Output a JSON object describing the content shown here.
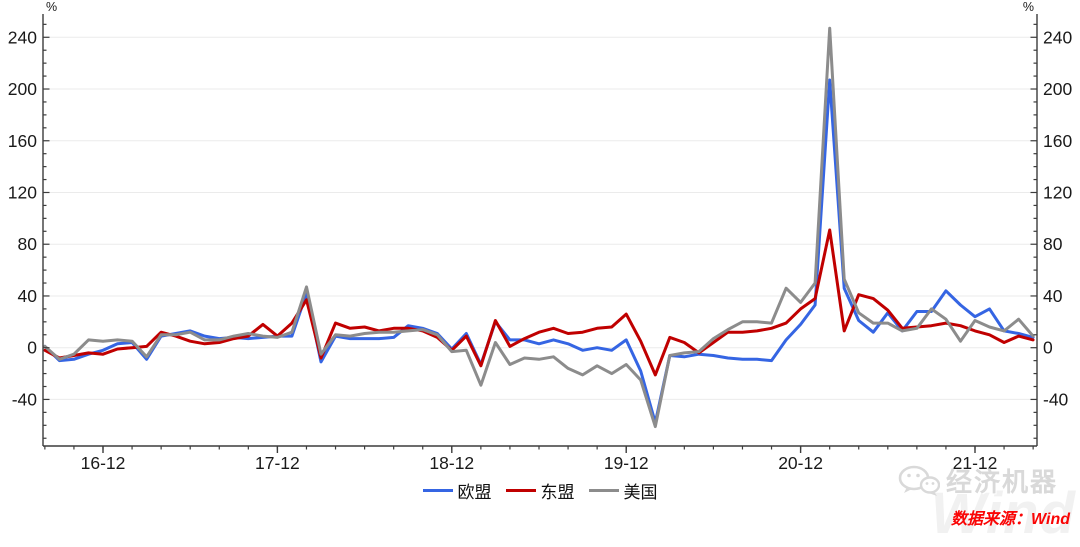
{
  "chart_data": {
    "type": "line",
    "title": "",
    "unit_left": "%",
    "unit_right": "%",
    "grid": "horizontal-major",
    "legend_position": "bottom-center",
    "ylim": [
      -76,
      258
    ],
    "yticks": [
      -40,
      0,
      40,
      80,
      120,
      160,
      200,
      240
    ],
    "y_minor_step": 10,
    "x_tick_labels": [
      "16-12",
      "17-12",
      "18-12",
      "19-12",
      "20-12",
      "21-12"
    ],
    "x_tick_months": [
      4,
      16,
      28,
      40,
      52,
      64
    ],
    "months": [
      "2016-08",
      "2016-09",
      "2016-10",
      "2016-11",
      "2016-12",
      "2017-01",
      "2017-02",
      "2017-03",
      "2017-04",
      "2017-05",
      "2017-06",
      "2017-07",
      "2017-08",
      "2017-09",
      "2017-10",
      "2017-11",
      "2017-12",
      "2018-01",
      "2018-02",
      "2018-03",
      "2018-04",
      "2018-05",
      "2018-06",
      "2018-07",
      "2018-08",
      "2018-09",
      "2018-10",
      "2018-11",
      "2018-12",
      "2019-01",
      "2019-02",
      "2019-03",
      "2019-04",
      "2019-05",
      "2019-06",
      "2019-07",
      "2019-08",
      "2019-09",
      "2019-10",
      "2019-11",
      "2019-12",
      "2020-01",
      "2020-02",
      "2020-03",
      "2020-04",
      "2020-05",
      "2020-06",
      "2020-07",
      "2020-08",
      "2020-09",
      "2020-10",
      "2020-11",
      "2020-12",
      "2021-01",
      "2021-02",
      "2021-03",
      "2021-04",
      "2021-05",
      "2021-06",
      "2021-07",
      "2021-08",
      "2021-09",
      "2021-10",
      "2021-11",
      "2021-12",
      "2022-01",
      "2022-02",
      "2022-03",
      "2022-04"
    ],
    "series": [
      {
        "name": "欧盟",
        "color": "#3565e3",
        "values": [
          1,
          -10,
          -9,
          -5,
          -2,
          3,
          4,
          -9,
          9,
          11,
          13,
          9,
          7,
          8,
          7,
          8,
          9,
          9,
          42,
          -11,
          9,
          7,
          7,
          7,
          8,
          17,
          15,
          11,
          -1,
          11,
          -13,
          20,
          6,
          6,
          3,
          6,
          3,
          -2,
          0,
          -2,
          6,
          -18,
          -58,
          -6,
          -7,
          -5,
          -6,
          -8,
          -9,
          -9,
          -10,
          6,
          18,
          33,
          207,
          46,
          21,
          12,
          27,
          13,
          28,
          28,
          44,
          33,
          24,
          30,
          13,
          11,
          8
        ]
      },
      {
        "name": "东盟",
        "color": "#c00000",
        "values": [
          -2,
          -8,
          -6,
          -4,
          -5,
          -1,
          0,
          1,
          12,
          9,
          5,
          3,
          4,
          7,
          9,
          18,
          9,
          19,
          37,
          -8,
          19,
          15,
          16,
          13,
          15,
          15,
          13,
          8,
          -2,
          9,
          -14,
          21,
          1,
          7,
          12,
          15,
          11,
          12,
          15,
          16,
          26,
          5,
          -21,
          8,
          4,
          -4,
          4,
          12,
          12,
          13,
          15,
          19,
          30,
          38,
          91,
          13,
          41,
          38,
          29,
          15,
          16,
          17,
          19,
          17,
          13,
          10,
          4,
          9,
          6
        ]
      },
      {
        "name": "美国",
        "color": "#8c8c8c",
        "values": [
          1,
          -9,
          -5,
          6,
          5,
          6,
          5,
          -7,
          10,
          10,
          12,
          6,
          6,
          9,
          11,
          9,
          8,
          12,
          47,
          -5,
          10,
          9,
          11,
          12,
          12,
          13,
          14,
          10,
          -3,
          -2,
          -29,
          4,
          -13,
          -8,
          -9,
          -7,
          -16,
          -21,
          -14,
          -20,
          -13,
          -25,
          -61,
          -6,
          -4,
          -3,
          7,
          14,
          20,
          20,
          19,
          46,
          35,
          50,
          247,
          53,
          27,
          19,
          19,
          13,
          15,
          30,
          22,
          5,
          21,
          16,
          13,
          22,
          9
        ]
      }
    ]
  },
  "legend": {
    "items": [
      {
        "label": "欧盟",
        "color": "#3565e3"
      },
      {
        "label": "东盟",
        "color": "#c00000"
      },
      {
        "label": "美国",
        "color": "#8c8c8c"
      }
    ]
  },
  "watermark": {
    "brand": "经济机器",
    "ghost": "Wind",
    "icon": "wechat"
  },
  "source": {
    "text": "数据来源：Wind"
  },
  "colors": {
    "axis": "#3c3c3c",
    "tick_label": "#1a1a1a",
    "grid": "#ebebeb",
    "source_red": "#fa0505"
  }
}
